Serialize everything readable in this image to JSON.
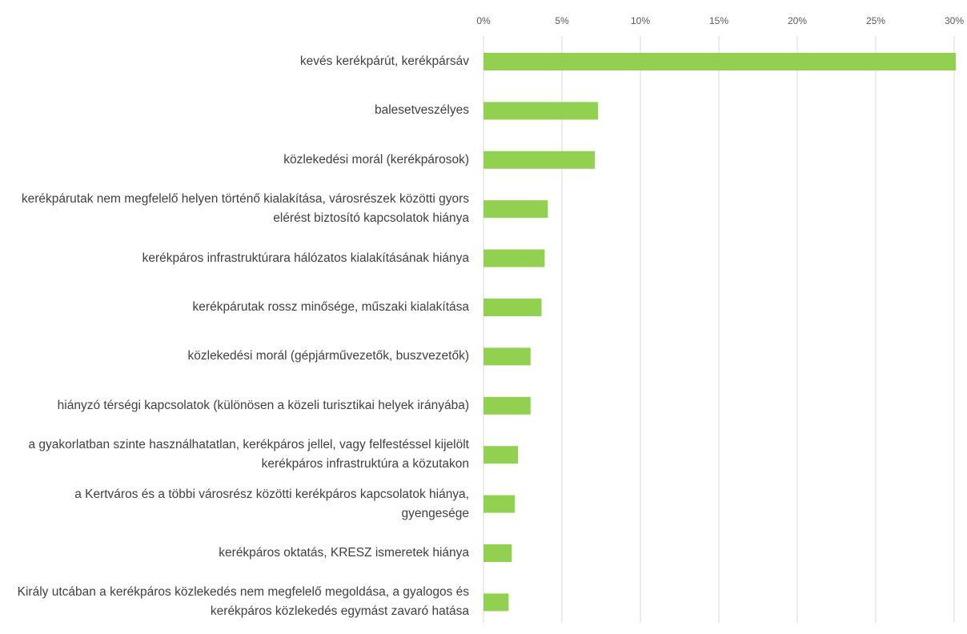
{
  "chart_data": {
    "type": "bar",
    "orientation": "horizontal",
    "color": "#92d050",
    "grid": true,
    "categories": [
      "kevés kerékpárút, kerékpársáv",
      "balesetveszélyes",
      "közlekedési morál (kerékpárosok)",
      "kerékpárutak nem megfelelő helyen történő kialakítása, városrészek közötti gyors elérést biztosító kapcsolatok hiánya",
      "kerékpáros infrastruktúrara hálózatos kialakításának hiánya",
      "kerékpárutak rossz minősége, műszaki kialakítása",
      "közlekedési morál (gépjárművezetők, buszvezetők)",
      "hiányzó térségi kapcsolatok (különösen a közeli turisztikai helyek irányába)",
      "a gyakorlatban szinte használhatatlan, kerékpáros jellel, vagy felfestéssel kijelölt kerékpáros infrastruktúra a közutakon",
      "a Kertváros és a többi városrész közötti kerékpáros kapcsolatok hiánya, gyengesége",
      "kerékpáros oktatás, KRESZ ismeretek hiánya",
      "Király utcában a kerékpáros közlekedés nem megfelelő megoldása, a gyalogos és kerékpáros közlekedés egymást zavaró hatása"
    ],
    "values": [
      30.1,
      7.3,
      7.1,
      4.1,
      3.9,
      3.7,
      3.0,
      3.0,
      2.2,
      2.0,
      1.8,
      1.6
    ],
    "xlim": [
      0,
      30
    ],
    "xticks": [
      {
        "value": 0,
        "label": "0%"
      },
      {
        "value": 5,
        "label": "5%"
      },
      {
        "value": 10,
        "label": "10%"
      },
      {
        "value": 15,
        "label": "15%"
      },
      {
        "value": 20,
        "label": "20%"
      },
      {
        "value": 25,
        "label": "25%"
      },
      {
        "value": 30,
        "label": "30%"
      }
    ]
  }
}
